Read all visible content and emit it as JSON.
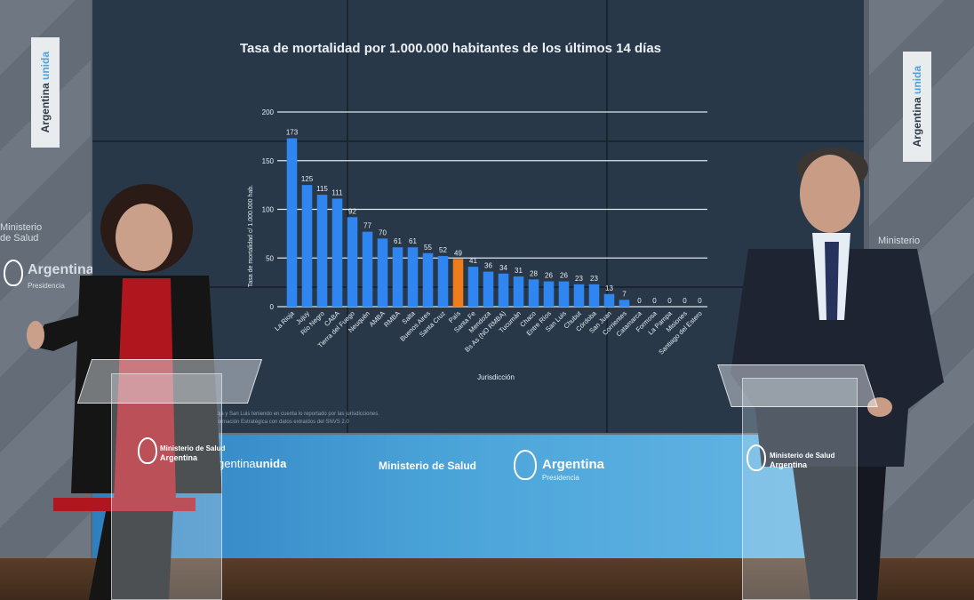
{
  "chart_data": {
    "type": "bar",
    "title": "Tasa de mortalidad por 1.000.000 habitantes  de los últimos 14 días",
    "xlabel": "Jurisdicción",
    "ylabel": "Tasa de mortalidad c/ 1.000.000 hab.",
    "ylim": [
      0,
      200
    ],
    "yticks": [
      "0",
      "50",
      "100",
      "150",
      "200"
    ],
    "grid": true,
    "categories": [
      "La Rioja",
      "Jujuy",
      "Río Negro",
      "CABA",
      "Tierra del Fuego",
      "Neuquén",
      "AMBA",
      "RMBA",
      "Salta",
      "Buenos Aires",
      "Santa Cruz",
      "País",
      "Santa Fe",
      "Mendoza",
      "Bs As (NO RMBA)",
      "Tucumán",
      "Chaco",
      "Entre Ríos",
      "San Luis",
      "Chubut",
      "Córdoba",
      "San Juan",
      "Corrientes",
      "Catamarca",
      "Formosa",
      "La Pampa",
      "Misiones",
      "Santiago del Estero"
    ],
    "values": [
      173,
      125,
      115,
      111,
      92,
      77,
      70,
      61,
      61,
      55,
      52,
      49,
      41,
      36,
      34,
      31,
      28,
      26,
      26,
      23,
      23,
      13,
      7,
      0,
      0,
      0,
      0,
      0
    ],
    "highlight_index": 11,
    "colors": {
      "bar": "#2f86f0",
      "highlight": "#f07d1c",
      "grid": "#dfe6ee",
      "text": "#e6edf4"
    }
  },
  "screen": {
    "footnote_lines": [
      "...a Rioja y San Luis teniendo en cuenta lo reportado por las jurisdicciones.",
      "...e Información Estratégica con datos extraídos del SNVS 2.0"
    ]
  },
  "backdrop": {
    "brand_left": "Argentina",
    "brand_right": "unida",
    "ministry": "Ministerio de Salud",
    "country": "Argentina",
    "presidency": "Presidencia"
  },
  "side_banners": {
    "tag_left": "Argentina",
    "tag_right": "unida",
    "ministry_line1": "Ministerio",
    "ministry_line2": "de Salud",
    "country": "Argentina",
    "presidency": "Presidencia"
  },
  "podiums": {
    "left_line1": "Ministerio de Salud",
    "left_line2": "Argentina",
    "right_line1": "Ministerio de Salud",
    "right_line2": "Argentina"
  }
}
